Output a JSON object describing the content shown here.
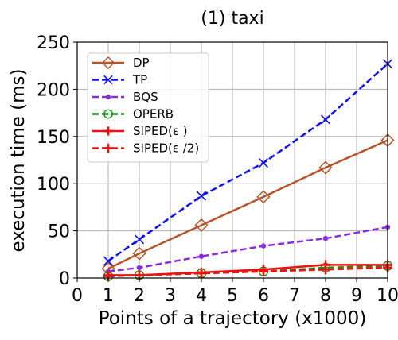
{
  "chart_data": {
    "type": "line",
    "title": "(1) taxi",
    "xlabel": "Points of a trajectory (x1000)",
    "ylabel": "execution time (ms)",
    "xlim": [
      0,
      10
    ],
    "ylim": [
      0,
      250
    ],
    "xticks": [
      0,
      1,
      2,
      3,
      4,
      5,
      6,
      7,
      8,
      9,
      10
    ],
    "yticks": [
      0,
      50,
      100,
      150,
      200,
      250
    ],
    "grid": true,
    "legend_position": "top-left",
    "x": [
      1,
      2,
      4,
      6,
      8,
      10
    ],
    "series": [
      {
        "name": "DP",
        "values": [
          10,
          26,
          56,
          86,
          117,
          146
        ],
        "color": "#b5562a",
        "dash": "solid",
        "marker": "diamond-open"
      },
      {
        "name": "TP",
        "values": [
          18,
          41,
          87,
          122,
          168,
          227
        ],
        "color": "#1010f0",
        "dash": "dashed",
        "marker": "x"
      },
      {
        "name": "BQS",
        "values": [
          7,
          11,
          23,
          34,
          42,
          54
        ],
        "color": "#8a2be2",
        "dash": "dashed",
        "marker": "dot"
      },
      {
        "name": "OPERB",
        "values": [
          2,
          3,
          5,
          7,
          11,
          13
        ],
        "color": "#1a8a1a",
        "dash": "dashed",
        "marker": "circle-minus"
      },
      {
        "name": "SIPED(ε )",
        "values": [
          3,
          3,
          6,
          9,
          14,
          14
        ],
        "color": "#f01010",
        "dash": "solid",
        "marker": "plus"
      },
      {
        "name": "SIPED(ε /2)",
        "values": [
          2,
          3,
          5,
          7,
          9,
          11
        ],
        "color": "#f01010",
        "dash": "dashed",
        "marker": "plus"
      }
    ]
  }
}
